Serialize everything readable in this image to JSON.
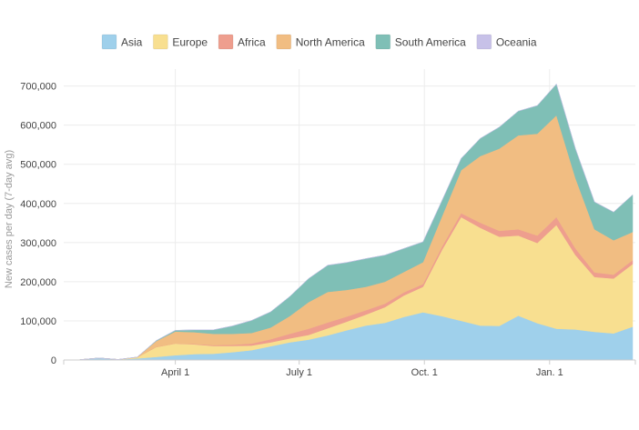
{
  "chart_data": {
    "type": "area",
    "stacked": true,
    "ylabel": "New cases per day (7-day avg)",
    "xlabel": "",
    "x": [
      "2020-01-22",
      "2020-02-05",
      "2020-02-19",
      "2020-03-04",
      "2020-03-18",
      "2020-04-01",
      "2020-04-15",
      "2020-04-29",
      "2020-05-13",
      "2020-05-27",
      "2020-06-10",
      "2020-06-24",
      "2020-07-08",
      "2020-07-22",
      "2020-08-05",
      "2020-08-19",
      "2020-09-02",
      "2020-09-16",
      "2020-09-30",
      "2020-10-14",
      "2020-10-28",
      "2020-11-11",
      "2020-11-25",
      "2020-12-09",
      "2020-12-23",
      "2021-01-06",
      "2021-01-20",
      "2021-02-03",
      "2021-02-17",
      "2021-03-03"
    ],
    "series": [
      {
        "name": "Asia",
        "color": "#9fd0eb",
        "values": [
          1000,
          5000,
          1500,
          4000,
          8000,
          12000,
          15000,
          16000,
          20000,
          25000,
          35000,
          45000,
          52000,
          63000,
          76000,
          88000,
          95000,
          110000,
          122000,
          112000,
          100000,
          88000,
          87000,
          113000,
          94000,
          80000,
          78000,
          72000,
          68000,
          85000
        ]
      },
      {
        "name": "Europe",
        "color": "#f8df90",
        "values": [
          0,
          0,
          0,
          3000,
          25000,
          30000,
          25000,
          20000,
          16000,
          12000,
          10000,
          10000,
          12000,
          18000,
          22000,
          28000,
          40000,
          55000,
          65000,
          170000,
          265000,
          250000,
          228000,
          205000,
          205000,
          265000,
          190000,
          140000,
          140000,
          160000
        ]
      },
      {
        "name": "Africa",
        "color": "#ee9e8e",
        "values": [
          0,
          0,
          0,
          0,
          200,
          600,
          1000,
          2000,
          3000,
          5000,
          8000,
          12000,
          16000,
          15000,
          13000,
          11000,
          9000,
          8000,
          7000,
          8000,
          10000,
          13000,
          15000,
          16000,
          19000,
          20000,
          17000,
          12000,
          10000,
          10000
        ]
      },
      {
        "name": "North America",
        "color": "#f1bd82",
        "values": [
          0,
          0,
          0,
          500,
          15000,
          30000,
          30000,
          29000,
          28000,
          27000,
          30000,
          45000,
          68000,
          78000,
          68000,
          60000,
          56000,
          52000,
          56000,
          78000,
          110000,
          170000,
          210000,
          240000,
          260000,
          260000,
          180000,
          110000,
          88000,
          72000
        ]
      },
      {
        "name": "South America",
        "color": "#7fbfb6",
        "values": [
          0,
          0,
          0,
          0,
          1500,
          3000,
          6000,
          10000,
          20000,
          32000,
          40000,
          50000,
          60000,
          68000,
          70000,
          72000,
          68000,
          60000,
          52000,
          40000,
          30000,
          45000,
          55000,
          62000,
          72000,
          80000,
          75000,
          70000,
          72000,
          95000
        ]
      },
      {
        "name": "Oceania",
        "color": "#c7c1e8",
        "values": [
          0,
          0,
          0,
          0,
          100,
          400,
          200,
          50,
          20,
          20,
          30,
          200,
          400,
          500,
          350,
          150,
          60,
          20,
          20,
          20,
          20,
          30,
          30,
          30,
          30,
          40,
          30,
          20,
          20,
          20
        ]
      }
    ],
    "yticks": [
      0,
      100000,
      200000,
      300000,
      400000,
      500000,
      600000,
      700000
    ],
    "ytick_labels": [
      "0",
      "100,000",
      "200,000",
      "300,000",
      "400,000",
      "500,000",
      "600,000",
      "700,000"
    ],
    "ylim": [
      0,
      720000
    ],
    "xlim": [
      "2020-01-10",
      "2021-03-05"
    ],
    "xticks": [
      "2020-04-01",
      "2020-07-01",
      "2020-10-01",
      "2021-01-01"
    ],
    "xtick_labels": [
      "April 1",
      "July 1",
      "Oct. 1",
      "Jan. 1"
    ],
    "legend_position": "top",
    "grid": true
  }
}
